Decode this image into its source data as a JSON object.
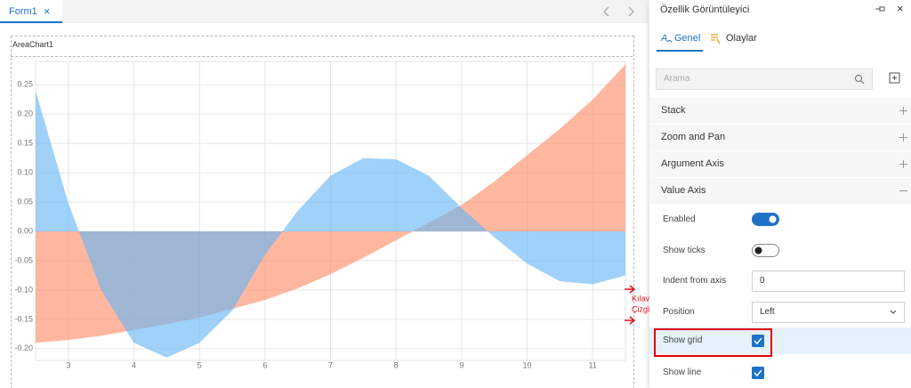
{
  "tab": {
    "title": "Form1",
    "close": "×"
  },
  "component": {
    "name": "AreaChart1"
  },
  "chart_data": {
    "type": "area",
    "x": [
      2.5,
      3,
      3.5,
      4,
      4.5,
      5,
      5.5,
      6,
      6.5,
      7,
      7.5,
      8,
      8.5,
      9,
      9.5,
      10,
      10.5,
      11,
      11.5
    ],
    "series": [
      {
        "color": "#ff8a65",
        "values": [
          -0.19,
          -0.185,
          -0.178,
          -0.168,
          -0.158,
          -0.147,
          -0.132,
          -0.117,
          -0.097,
          -0.073,
          -0.045,
          -0.015,
          0.015,
          0.045,
          0.085,
          0.13,
          0.175,
          0.225,
          0.285
        ]
      },
      {
        "color": "#64b5f6",
        "values": [
          0.24,
          0.048,
          -0.1,
          -0.19,
          -0.215,
          -0.19,
          -0.135,
          -0.04,
          0.035,
          0.095,
          0.125,
          0.123,
          0.095,
          0.04,
          -0.01,
          -0.055,
          -0.085,
          -0.09,
          -0.075
        ]
      }
    ],
    "xlim": [
      2.5,
      11.5
    ],
    "xticks": [
      3,
      4,
      5,
      6,
      7,
      8,
      9,
      10,
      11
    ],
    "ylim": [
      -0.22,
      0.29
    ],
    "yticks": [
      {
        "value": -0.2,
        "label": "-0.20"
      },
      -0.15,
      {
        "value": -0.1,
        "label": "-0.10"
      },
      -0.05,
      {
        "value": 0,
        "label": "0.00"
      },
      0.05,
      {
        "value": 0.1,
        "label": "0.10"
      },
      0.15,
      {
        "value": 0.2,
        "label": "0.20"
      },
      0.25
    ],
    "grid": true
  },
  "panel": {
    "title": "Özellik Görüntüleyici",
    "close": "×",
    "tabs": [
      "Genel",
      "Olaylar"
    ],
    "search_placeholder": "Arama",
    "sections": [
      "Stack",
      "Zoom and Pan",
      "Argument Axis",
      "Value Axis"
    ],
    "properties": [
      {
        "label": "Enabled",
        "type": "toggle",
        "value": true
      },
      {
        "label": "Show ticks",
        "type": "toggle",
        "value": false
      },
      {
        "label": "Indent from axis",
        "type": "text",
        "value": 0
      },
      {
        "label": "Position",
        "type": "select",
        "value": "Left"
      },
      {
        "label": "Show grid",
        "type": "checkbox",
        "value": true
      },
      {
        "label": "Show line",
        "type": "checkbox",
        "value": true
      }
    ]
  },
  "annotation": {
    "lines": [
      "Kılavuz",
      "Çizgiler"
    ]
  }
}
